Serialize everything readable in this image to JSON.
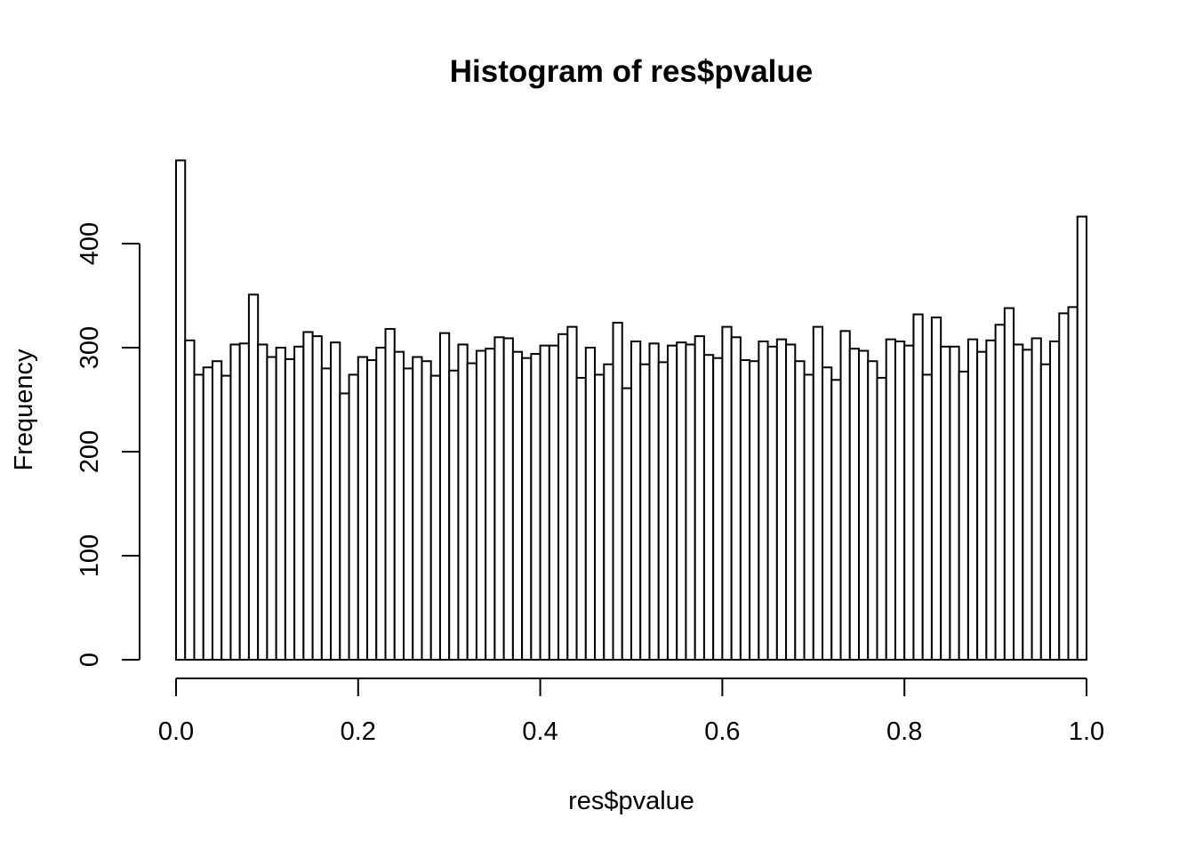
{
  "chart_data": {
    "type": "bar",
    "title": "Histogram of res$pvalue",
    "xlabel": "res$pvalue",
    "ylabel": "Frequency",
    "xlim": [
      0,
      1
    ],
    "ylim": [
      0,
      480
    ],
    "x_ticks": [
      "0.0",
      "0.2",
      "0.4",
      "0.6",
      "0.8",
      "1.0"
    ],
    "y_ticks": [
      "0",
      "100",
      "200",
      "300",
      "400"
    ],
    "bin_width": 0.01,
    "grid": false,
    "bar_fill": "#ffffff",
    "bar_stroke": "#000000",
    "values": [
      480,
      307,
      274,
      281,
      287,
      273,
      303,
      304,
      351,
      303,
      291,
      300,
      289,
      301,
      315,
      311,
      280,
      305,
      256,
      274,
      291,
      288,
      300,
      318,
      296,
      280,
      291,
      287,
      273,
      314,
      278,
      303,
      285,
      297,
      299,
      310,
      309,
      296,
      290,
      294,
      302,
      302,
      313,
      320,
      271,
      300,
      274,
      284,
      324,
      261,
      306,
      284,
      304,
      286,
      302,
      305,
      303,
      311,
      293,
      290,
      320,
      310,
      288,
      287,
      306,
      301,
      308,
      303,
      287,
      274,
      320,
      281,
      269,
      316,
      299,
      297,
      287,
      271,
      308,
      306,
      302,
      332,
      274,
      329,
      301,
      301,
      277,
      308,
      296,
      307,
      322,
      338,
      303,
      298,
      309,
      284,
      306,
      333,
      339,
      426
    ]
  }
}
